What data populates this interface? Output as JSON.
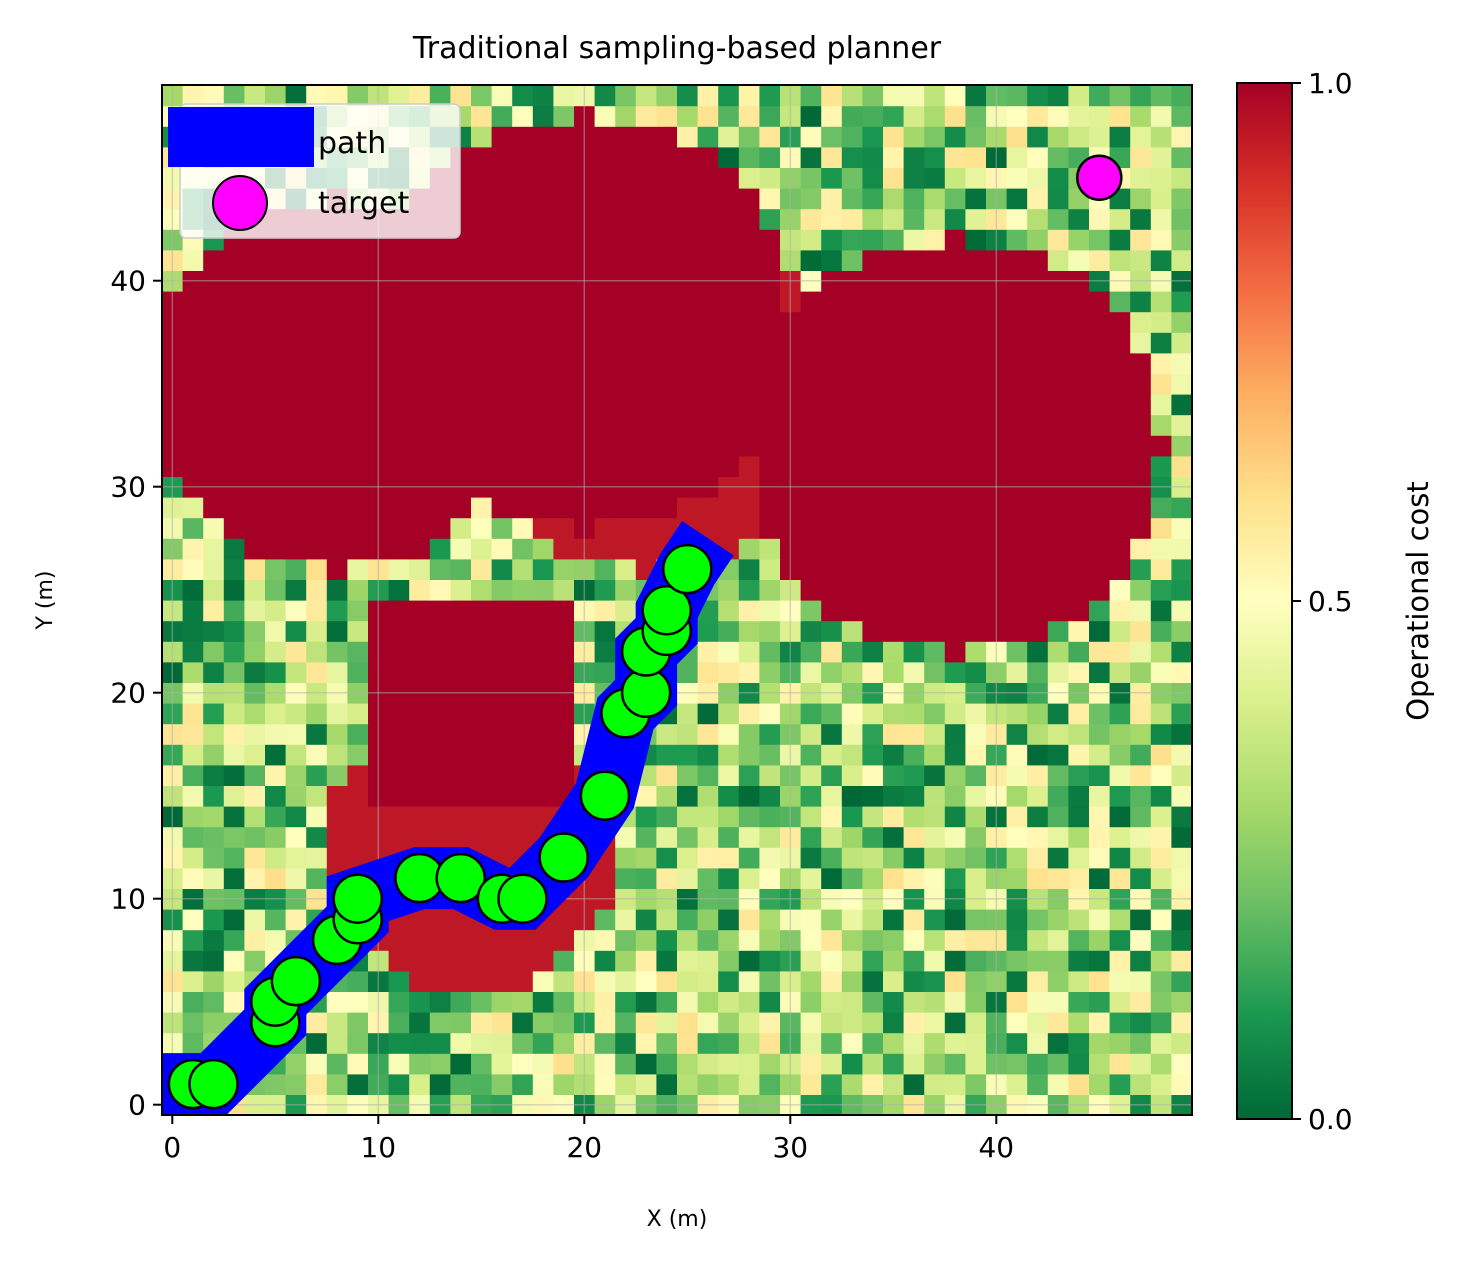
{
  "chart_data": {
    "type": "heatmap",
    "title": "Traditional sampling-based planner",
    "xlabel": "X (m)",
    "ylabel": "Y (m)",
    "xlim": [
      -0.5,
      49.5
    ],
    "ylim": [
      -0.5,
      49.5
    ],
    "xticks": [
      0,
      10,
      20,
      30,
      40
    ],
    "yticks": [
      0,
      10,
      20,
      30,
      40
    ],
    "grid": true,
    "grid_size": 50,
    "colormap": "RdYlGn_r",
    "colorbar": {
      "label": "Operational cost",
      "range": [
        0,
        1
      ],
      "ticks": [
        0.0,
        0.5,
        1.0
      ],
      "tick_labels": [
        "0.0",
        "0.5",
        "1.0"
      ]
    },
    "background_cost": {
      "distribution": "random",
      "min": 0.0,
      "max": 0.6
    },
    "obstacles": [
      {
        "shape": "circle",
        "center": [
          8,
          35
        ],
        "radius": 9,
        "cost": 1.0
      },
      {
        "shape": "circle",
        "center": [
          23,
          35
        ],
        "radius": 9,
        "cost": 0.95
      },
      {
        "shape": "circle",
        "center": [
          38,
          32
        ],
        "radius": 10,
        "cost": 1.0
      },
      {
        "shape": "rect",
        "x": [
          10,
          19
        ],
        "y": [
          15,
          24
        ],
        "cost": 1.0
      },
      {
        "shape": "circle",
        "center": [
          14.5,
          12.5
        ],
        "radius": 7,
        "cost": 0.95
      },
      {
        "shape": "circle",
        "center": [
          20,
          38
        ],
        "radius": 10,
        "cost": 1.0
      }
    ],
    "legend": {
      "position": "upper-left",
      "entries": [
        {
          "label": "path",
          "color": "#0000ff",
          "kind": "band"
        },
        {
          "label": "target",
          "color": "#ff00ff",
          "kind": "marker"
        }
      ]
    },
    "series": [
      {
        "name": "path",
        "color": "#0000ff",
        "points": [
          [
            -0.5,
            1
          ],
          [
            1,
            1
          ],
          [
            2,
            1
          ],
          [
            5,
            4
          ],
          [
            5,
            5
          ],
          [
            6,
            6
          ],
          [
            8,
            8
          ],
          [
            9,
            9
          ],
          [
            9,
            10
          ],
          [
            12,
            11
          ],
          [
            14,
            11
          ],
          [
            16,
            10
          ],
          [
            17,
            10
          ],
          [
            19,
            12
          ],
          [
            21,
            15
          ],
          [
            22,
            19
          ],
          [
            23,
            20
          ],
          [
            23,
            22
          ],
          [
            24,
            23
          ],
          [
            24,
            24
          ],
          [
            25,
            26
          ],
          [
            26,
            27.5
          ]
        ]
      },
      {
        "name": "waypoints",
        "color": "#00ff00",
        "points": [
          [
            1,
            1
          ],
          [
            2,
            1
          ],
          [
            5,
            4
          ],
          [
            5,
            5
          ],
          [
            6,
            6
          ],
          [
            8,
            8
          ],
          [
            9,
            9
          ],
          [
            9,
            10
          ],
          [
            12,
            11
          ],
          [
            14,
            11
          ],
          [
            16,
            10
          ],
          [
            17,
            10
          ],
          [
            19,
            12
          ],
          [
            21,
            15
          ],
          [
            22,
            19
          ],
          [
            23,
            20
          ],
          [
            23,
            22
          ],
          [
            24,
            23
          ],
          [
            24,
            24
          ],
          [
            25,
            26
          ]
        ]
      },
      {
        "name": "target",
        "color": "#ff00ff",
        "points": [
          [
            45,
            45
          ]
        ]
      }
    ]
  }
}
